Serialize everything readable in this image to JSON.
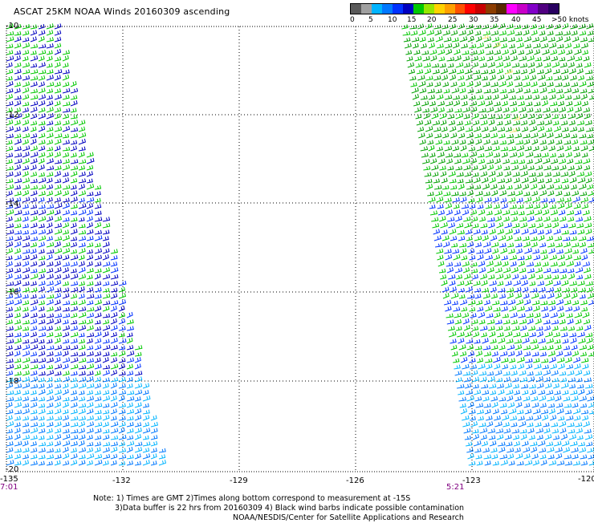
{
  "header": {
    "title": "ASCAT 25KM NOAA Winds 20160309 ascending"
  },
  "legend": {
    "colors": [
      "#5a5a5a",
      "#a0a0a0",
      "#00b4ff",
      "#0078ff",
      "#0032ff",
      "#0000c0",
      "#00c800",
      "#96e600",
      "#ffd200",
      "#ffa000",
      "#ff5000",
      "#ff0000",
      "#c80000",
      "#8c3c00",
      "#5a2800",
      "#ff00ff",
      "#c800c8",
      "#8200c8",
      "#500080",
      "#280060"
    ],
    "labels": [
      "0",
      "5",
      "10",
      "15",
      "20",
      "25",
      "30",
      "35",
      "40",
      "45",
      ">50 knots"
    ]
  },
  "map": {
    "y_labels": [
      "-10",
      "-12",
      "-14",
      "-16",
      "-18",
      "-20"
    ],
    "x_labels": [
      "-135",
      "-132",
      "-129",
      "-126",
      "-123",
      "-120"
    ],
    "swath_times": [
      "7:01",
      "5:21"
    ]
  },
  "notes": {
    "line1": "Note: 1) Times are GMT 2)Times along bottom correspond to measurement at -15S",
    "line2": "3)Data buffer is 22 hrs from 20160309 4) Black wind barbs indicate possible contamination",
    "line3": "NOAA/NESDIS/Center for Satellite Applications and Research"
  }
}
